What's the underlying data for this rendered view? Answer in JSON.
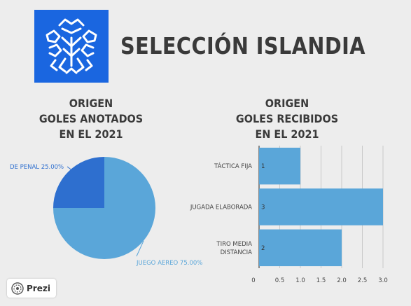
{
  "header": {
    "title": "SELECCIÓN ISLANDIA",
    "logo_icon": "iceland-football-crest-icon",
    "logo_color": "#1a66e0"
  },
  "chart_data": [
    {
      "type": "pie",
      "title_lines": [
        "ORIGEN",
        "GOLES ANOTADOS",
        "EN EL 2021"
      ],
      "slices": [
        {
          "label": "DE PENAL 25.00%",
          "value": 25.0,
          "color": "#2e6fcf"
        },
        {
          "label": "JUEGO AEREO 75.00%",
          "value": 75.0,
          "color": "#5aa6d9"
        }
      ]
    },
    {
      "type": "bar",
      "orientation": "horizontal",
      "title_lines": [
        "ORIGEN",
        "GOLES RECIBIDOS",
        "EN EL 2021"
      ],
      "categories": [
        "TÁCTICA FIJA",
        "JUGADA ELABORADA",
        "TIRO MEDIA DISTANCIA"
      ],
      "values": [
        1,
        3,
        2
      ],
      "xlim": [
        0,
        3.0
      ],
      "xticks": [
        "0",
        "0.5",
        "1.0",
        "1.5",
        "2.0",
        "2.5",
        "3.0"
      ],
      "grid": true,
      "bar_color": "#5aa6d9"
    }
  ],
  "footer": {
    "brand": "Prezi",
    "brand_icon": "prezi-logo-icon"
  }
}
